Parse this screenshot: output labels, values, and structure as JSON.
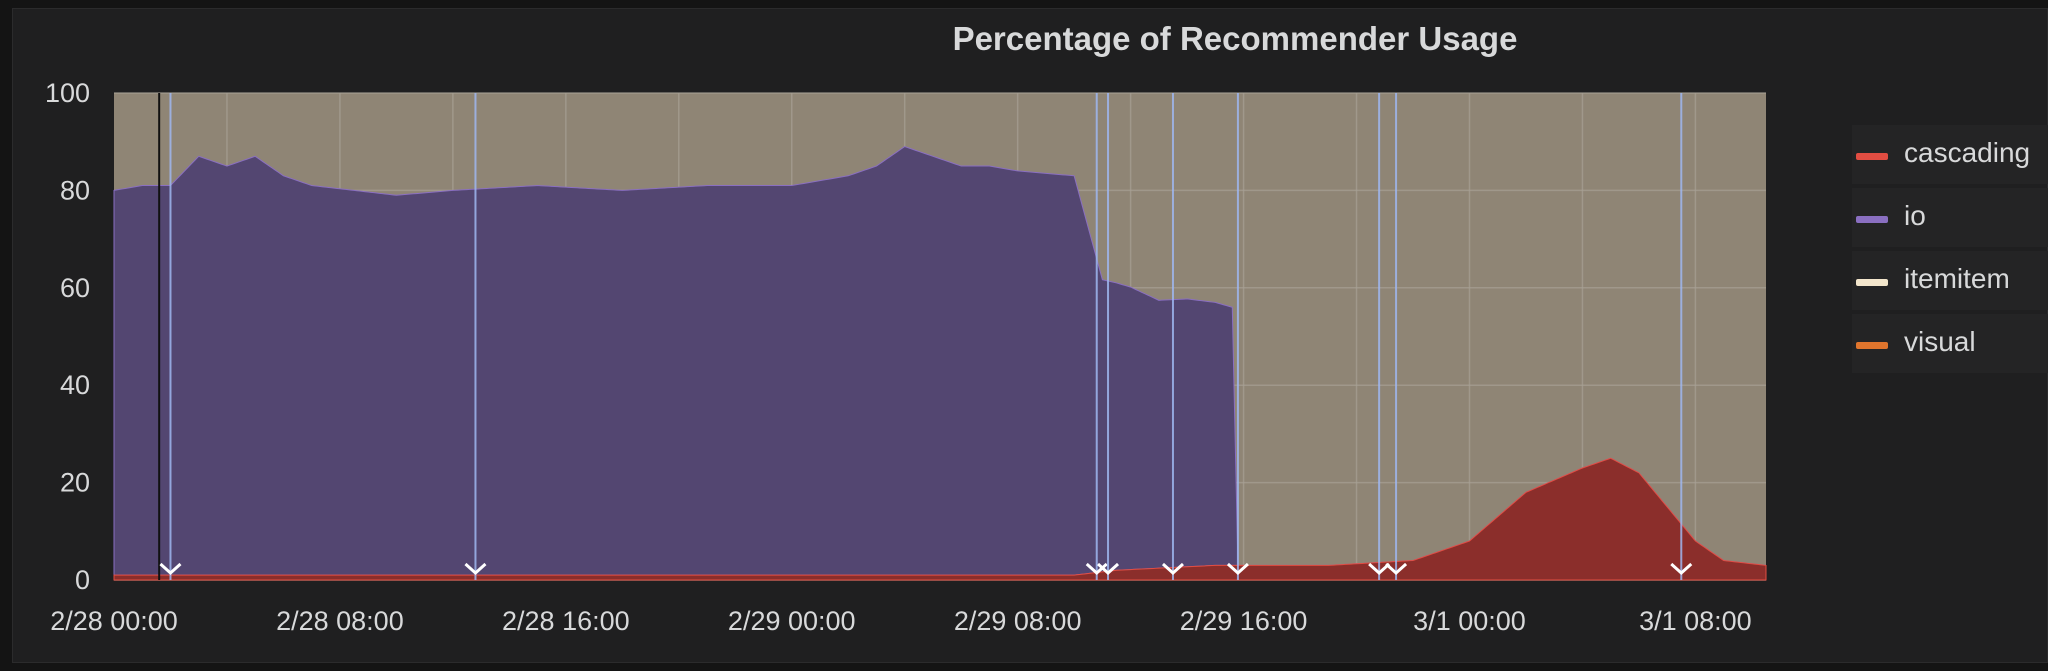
{
  "colors": {
    "panel_bg": "#1f1f20",
    "plot_bg": "#8f8575",
    "grid": "#a8a195",
    "text": "#d8d9da"
  },
  "chart_data": {
    "type": "area",
    "title": "Percentage of Recommender Usage",
    "xlabel": "",
    "ylabel": "",
    "ylim": [
      0,
      100
    ],
    "y_ticks": [
      "0",
      "20",
      "40",
      "60",
      "80",
      "100"
    ],
    "x_ticks": [
      "2/28 00:00",
      "2/28 08:00",
      "2/28 16:00",
      "2/29 00:00",
      "2/29 08:00",
      "2/29 16:00",
      "3/1 00:00",
      "3/1 08:00"
    ],
    "x_range_hours": [
      0,
      58.5
    ],
    "grid": true,
    "stacked": true,
    "legend_position": "right",
    "series": [
      {
        "name": "cascading",
        "color": "#e24d42",
        "fill": "#8b2e2b",
        "points": [
          [
            0,
            1
          ],
          [
            12,
            1
          ],
          [
            28,
            1
          ],
          [
            34,
            1
          ],
          [
            35.5,
            2
          ],
          [
            39,
            3
          ],
          [
            43,
            3
          ],
          [
            46,
            4
          ],
          [
            48,
            8
          ],
          [
            50,
            18
          ],
          [
            52,
            23
          ],
          [
            53,
            25
          ],
          [
            54,
            22
          ],
          [
            55,
            15
          ],
          [
            56,
            8
          ],
          [
            57,
            4
          ],
          [
            58.5,
            3
          ]
        ]
      },
      {
        "name": "io",
        "color": "#8a6fc1",
        "fill": "#534671",
        "points": [
          [
            0,
            79
          ],
          [
            1,
            80
          ],
          [
            2,
            80
          ],
          [
            3,
            86
          ],
          [
            4,
            84
          ],
          [
            5,
            86
          ],
          [
            6,
            82
          ],
          [
            7,
            80
          ],
          [
            10,
            78
          ],
          [
            12,
            79
          ],
          [
            15,
            80
          ],
          [
            18,
            79
          ],
          [
            21,
            80
          ],
          [
            24,
            80
          ],
          [
            26,
            82
          ],
          [
            27,
            84
          ],
          [
            28,
            88
          ],
          [
            29,
            86
          ],
          [
            30,
            84
          ],
          [
            31,
            84
          ],
          [
            32,
            83
          ],
          [
            34,
            82
          ],
          [
            35,
            60
          ],
          [
            36,
            58
          ],
          [
            37,
            55
          ],
          [
            38,
            55
          ],
          [
            39,
            54
          ],
          [
            39.6,
            53
          ],
          [
            39.8,
            0
          ],
          [
            58.5,
            0
          ]
        ]
      },
      {
        "name": "itemitem",
        "color": "#f3e6cc",
        "points": []
      },
      {
        "name": "visual",
        "color": "#e0752d",
        "points": []
      }
    ],
    "annotations_hours": [
      2,
      12.8,
      34.8,
      35.2,
      37.5,
      39.8,
      44.8,
      45.4,
      55.5
    ]
  }
}
